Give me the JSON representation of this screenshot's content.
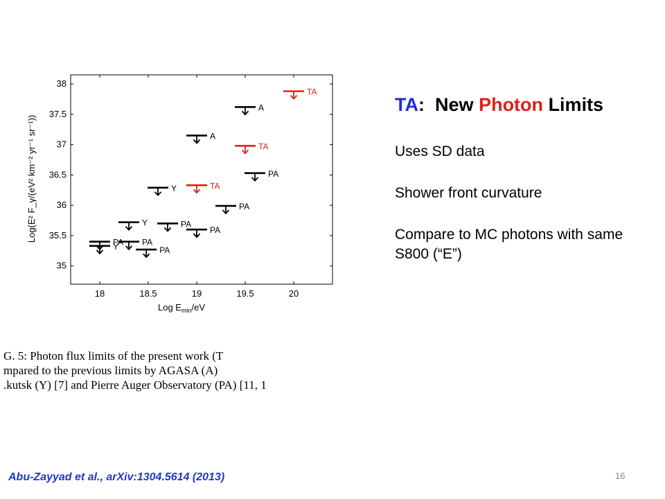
{
  "slide": {
    "title_parts": {
      "ta": "TA",
      "colon": ":",
      "new": "New",
      "photon": "Photon",
      "limits": "Limits"
    },
    "colors": {
      "ta": "#1a2fd6",
      "photon": "#e0201b",
      "text": "#000000"
    },
    "bullets": [
      "Uses SD data",
      "Shower front curvature",
      "Compare to MC photons with same S800 (“E”)"
    ],
    "citation": "Abu-Zayyad et al., arXiv:1304.5614 (2013)",
    "page_number": "16"
  },
  "caption_lines": [
    "G. 5:    Photon flux limits of the present work (T",
    "mpared  to  the  previous  limits  by  AGASA  (A)",
    ".kutsk (Y) [7] and Pierre Auger Observatory (PA) [11, 1"
  ],
  "chart_data": {
    "type": "scatter",
    "subtype": "upper-limits",
    "xlim": [
      17.7,
      20.4
    ],
    "ylim": [
      34.7,
      38.15
    ],
    "xticks": [
      "18",
      "18.5",
      "19",
      "19.5",
      "20"
    ],
    "yticks": [
      "35",
      "35.5",
      "36",
      "36.5",
      "37",
      "37.5",
      "38"
    ],
    "xlabel": {
      "main": "Log E",
      "sub": "min",
      "tail": "/eV"
    },
    "ylabel": "Log(E² F_γ/(eV² km⁻² yr⁻¹ sr⁻¹))",
    "series": [
      {
        "name": "TA",
        "color": "#e0201b",
        "points": [
          {
            "x": 19.0,
            "y": 36.33
          },
          {
            "x": 19.5,
            "y": 36.98
          },
          {
            "x": 20.0,
            "y": 37.88
          }
        ]
      },
      {
        "name": "A",
        "color": "#000000",
        "points": [
          {
            "x": 19.0,
            "y": 37.15
          },
          {
            "x": 19.5,
            "y": 37.62
          }
        ]
      },
      {
        "name": "Y",
        "color": "#000000",
        "points": [
          {
            "x": 18.0,
            "y": 35.33
          },
          {
            "x": 18.3,
            "y": 35.72
          },
          {
            "x": 18.6,
            "y": 36.29
          }
        ]
      },
      {
        "name": "PA",
        "color": "#000000",
        "points": [
          {
            "x": 18.0,
            "y": 35.4
          },
          {
            "x": 18.3,
            "y": 35.4
          },
          {
            "x": 18.48,
            "y": 35.27
          },
          {
            "x": 18.7,
            "y": 35.7
          },
          {
            "x": 19.0,
            "y": 35.6
          },
          {
            "x": 19.3,
            "y": 35.99
          },
          {
            "x": 19.6,
            "y": 36.53
          }
        ]
      }
    ]
  }
}
